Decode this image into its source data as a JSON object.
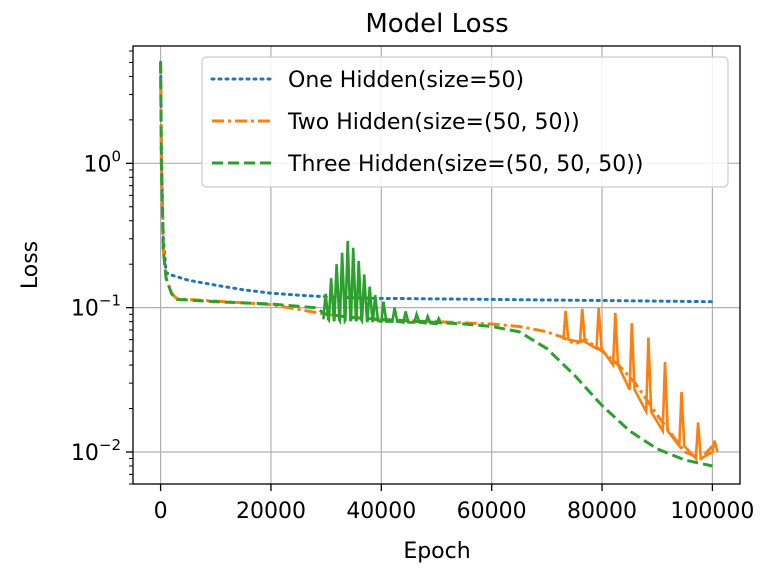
{
  "chart_data": {
    "type": "line",
    "title": "Model Loss",
    "xlabel": "Epoch",
    "ylabel": "Loss",
    "yscale": "log",
    "xlim": [
      -5000,
      105000
    ],
    "ylim": [
      0.006,
      6.5
    ],
    "grid": true,
    "legend_position": "top-right",
    "x_ticks": [
      {
        "value": 0,
        "label": "0"
      },
      {
        "value": 20000,
        "label": "20000"
      },
      {
        "value": 40000,
        "label": "40000"
      },
      {
        "value": 60000,
        "label": "60000"
      },
      {
        "value": 80000,
        "label": "80000"
      },
      {
        "value": 100000,
        "label": "100000"
      }
    ],
    "y_ticks": [
      {
        "value": 0.01,
        "base": "10",
        "exp": "−2"
      },
      {
        "value": 0.1,
        "base": "10",
        "exp": "−1"
      },
      {
        "value": 1,
        "base": "10",
        "exp": "0"
      }
    ],
    "series": [
      {
        "name": "One Hidden(size=50)",
        "color": "#1f77b4",
        "dash": "dotted",
        "x": [
          0,
          150,
          500,
          1000,
          2000,
          5000,
          10000,
          15000,
          20000,
          25000,
          30000,
          35000,
          40000,
          45000,
          50000,
          60000,
          70000,
          80000,
          90000,
          100000
        ],
        "y": [
          5.0,
          1.2,
          0.3,
          0.175,
          0.168,
          0.155,
          0.143,
          0.133,
          0.126,
          0.122,
          0.119,
          0.117,
          0.116,
          0.1155,
          0.115,
          0.114,
          0.113,
          0.112,
          0.111,
          0.11
        ]
      },
      {
        "name": "Two Hidden(size=(50, 50))",
        "color": "#ff7f0e",
        "dash": "dashdot",
        "x": [
          0,
          150,
          500,
          1000,
          2000,
          3000,
          10000,
          20000,
          30000,
          40000,
          50000,
          60000,
          65000,
          70000,
          73000,
          75000,
          77000,
          80000,
          83000,
          86000,
          90000,
          95000,
          98000,
          100000
        ],
        "y": [
          5.0,
          1.0,
          0.25,
          0.16,
          0.125,
          0.115,
          0.111,
          0.105,
          0.09,
          0.082,
          0.08,
          0.077,
          0.074,
          0.068,
          0.062,
          0.056,
          0.06,
          0.05,
          0.04,
          0.03,
          0.018,
          0.01,
          0.009,
          0.011
        ],
        "oscillation_ranges": [
          {
            "x": 73000,
            "y_low": 0.06,
            "y_high": 0.095
          },
          {
            "x": 76000,
            "y_low": 0.058,
            "y_high": 0.098
          },
          {
            "x": 79000,
            "y_low": 0.052,
            "y_high": 0.1
          },
          {
            "x": 82000,
            "y_low": 0.04,
            "y_high": 0.092
          },
          {
            "x": 85000,
            "y_low": 0.027,
            "y_high": 0.078
          },
          {
            "x": 88000,
            "y_low": 0.019,
            "y_high": 0.062
          },
          {
            "x": 91000,
            "y_low": 0.014,
            "y_high": 0.042
          },
          {
            "x": 94000,
            "y_low": 0.011,
            "y_high": 0.026
          },
          {
            "x": 97000,
            "y_low": 0.009,
            "y_high": 0.016
          },
          {
            "x": 100000,
            "y_low": 0.01,
            "y_high": 0.012
          }
        ]
      },
      {
        "name": "Three Hidden(size=(50, 50, 50))",
        "color": "#2ca02c",
        "dash": "dashed",
        "x": [
          0,
          150,
          500,
          1000,
          2000,
          3000,
          10000,
          20000,
          28000,
          30000,
          35000,
          40000,
          45000,
          50000,
          55000,
          60000,
          65000,
          70000,
          75000,
          80000,
          85000,
          90000,
          95000,
          100000
        ],
        "y": [
          5.0,
          1.0,
          0.25,
          0.16,
          0.125,
          0.114,
          0.11,
          0.106,
          0.1,
          0.09,
          0.085,
          0.083,
          0.081,
          0.079,
          0.077,
          0.074,
          0.068,
          0.052,
          0.034,
          0.021,
          0.014,
          0.0105,
          0.0088,
          0.008
        ],
        "oscillation_ranges": [
          {
            "x": 29500,
            "y_low": 0.083,
            "y_high": 0.125
          },
          {
            "x": 30500,
            "y_low": 0.082,
            "y_high": 0.16
          },
          {
            "x": 31500,
            "y_low": 0.082,
            "y_high": 0.2
          },
          {
            "x": 32500,
            "y_low": 0.081,
            "y_high": 0.24
          },
          {
            "x": 33500,
            "y_low": 0.082,
            "y_high": 0.29
          },
          {
            "x": 34500,
            "y_low": 0.082,
            "y_high": 0.26
          },
          {
            "x": 35500,
            "y_low": 0.082,
            "y_high": 0.21
          },
          {
            "x": 36500,
            "y_low": 0.081,
            "y_high": 0.17
          },
          {
            "x": 37500,
            "y_low": 0.081,
            "y_high": 0.14
          },
          {
            "x": 38500,
            "y_low": 0.081,
            "y_high": 0.122
          },
          {
            "x": 40000,
            "y_low": 0.08,
            "y_high": 0.11
          },
          {
            "x": 42000,
            "y_low": 0.08,
            "y_high": 0.1
          },
          {
            "x": 44000,
            "y_low": 0.079,
            "y_high": 0.094
          },
          {
            "x": 46000,
            "y_low": 0.079,
            "y_high": 0.09
          },
          {
            "x": 48000,
            "y_low": 0.078,
            "y_high": 0.087
          },
          {
            "x": 50000,
            "y_low": 0.077,
            "y_high": 0.084
          }
        ]
      }
    ]
  }
}
